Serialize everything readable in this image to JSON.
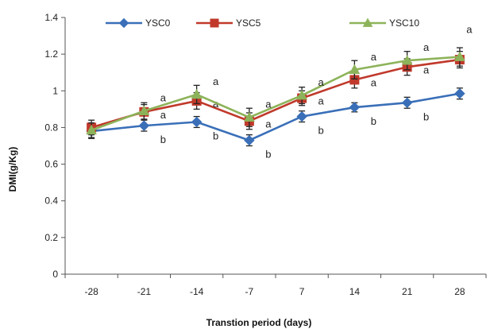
{
  "chart_data": {
    "type": "line",
    "ylabel": "DMI(g/Kg)",
    "xlabel": "Transtion period (days)",
    "categories": [
      "-28",
      "-21",
      "-14",
      "-7",
      "7",
      "14",
      "21",
      "28"
    ],
    "ylim": [
      0,
      1.4
    ],
    "yticks": [
      "0",
      "0.2",
      "0.4",
      "0.6",
      "0.8",
      "1",
      "1.2",
      "1.4"
    ],
    "legend_position": "top",
    "series": [
      {
        "name": "YSC0",
        "color": "#3a6fb8",
        "marker": "diamond",
        "values": [
          0.78,
          0.81,
          0.83,
          0.73,
          0.86,
          0.91,
          0.935,
          0.985
        ],
        "errors": [
          0.04,
          0.03,
          0.03,
          0.03,
          0.03,
          0.025,
          0.03,
          0.03
        ],
        "letters": [
          "",
          "b",
          "b",
          "b",
          "b",
          "b",
          "b",
          ""
        ]
      },
      {
        "name": "YSC5",
        "color": "#c0392b",
        "marker": "square",
        "values": [
          0.8,
          0.885,
          0.945,
          0.835,
          0.96,
          1.06,
          1.13,
          1.17
        ],
        "errors": [
          0.04,
          0.04,
          0.045,
          0.045,
          0.04,
          0.045,
          0.045,
          0.045
        ],
        "letters": [
          "",
          "a",
          "a",
          "a",
          "a",
          "a",
          "a",
          ""
        ]
      },
      {
        "name": "YSC10",
        "color": "#8db35a",
        "marker": "triangle",
        "values": [
          0.785,
          0.89,
          0.98,
          0.855,
          0.975,
          1.115,
          1.165,
          1.185
        ],
        "errors": [
          0.04,
          0.045,
          0.05,
          0.05,
          0.045,
          0.05,
          0.05,
          0.05
        ],
        "letters": [
          "",
          "a",
          "a",
          "a",
          "a",
          "a",
          "a",
          "a"
        ]
      }
    ]
  }
}
